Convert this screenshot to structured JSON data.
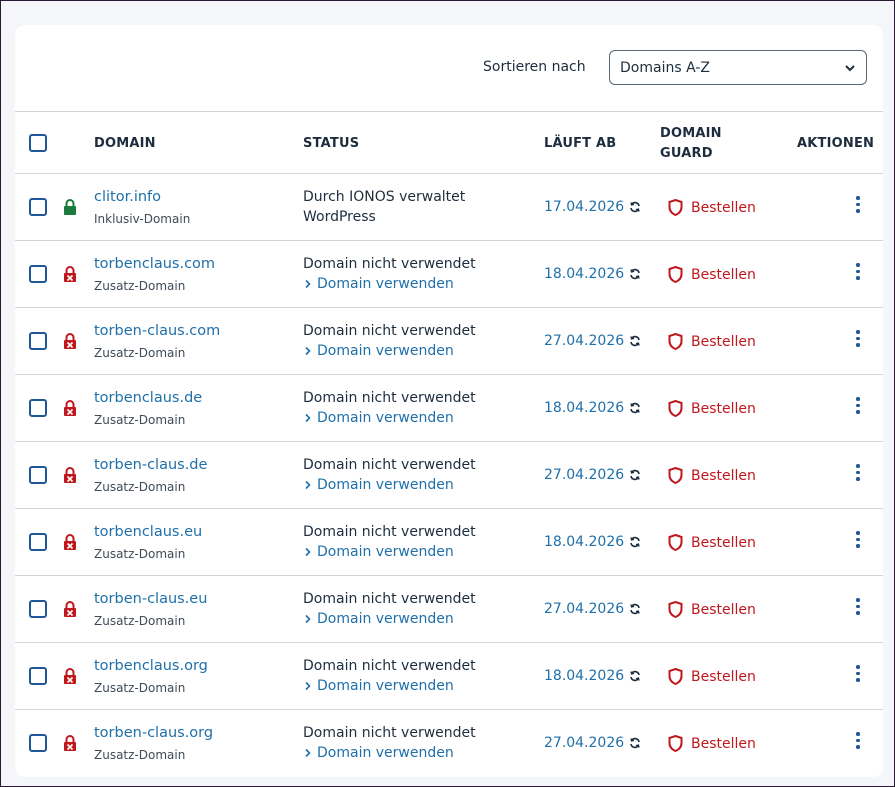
{
  "sort": {
    "label": "Sortieren nach",
    "selected": "Domains A-Z"
  },
  "columns": {
    "domain": "DOMAIN",
    "status": "STATUS",
    "expires": "LÄUFT AB",
    "guard_line1": "DOMAIN",
    "guard_line2": "GUARD",
    "actions": "AKTIONEN"
  },
  "colors": {
    "link": "#1f6fa9",
    "checkbox": "#1f5797",
    "lock_green": "#1a7a3c",
    "lock_red": "#c0171d",
    "guard_red": "#c0171d"
  },
  "rows": [
    {
      "domain": "clitor.info",
      "type": "Inklusiv-Domain",
      "status_line1": "Durch IONOS verwaltet",
      "status_line2": "WordPress",
      "status_link": false,
      "expires": "17.04.2026",
      "guard": "Bestellen",
      "lock": "green-lock-icon"
    },
    {
      "domain": "torbenclaus.com",
      "type": "Zusatz-Domain",
      "status_line1": "Domain nicht verwendet",
      "status_line2": "Domain verwenden",
      "status_link": true,
      "expires": "18.04.2026",
      "guard": "Bestellen",
      "lock": "red-lock-icon"
    },
    {
      "domain": "torben-claus.com",
      "type": "Zusatz-Domain",
      "status_line1": "Domain nicht verwendet",
      "status_line2": "Domain verwenden",
      "status_link": true,
      "expires": "27.04.2026",
      "guard": "Bestellen",
      "lock": "red-lock-icon"
    },
    {
      "domain": "torbenclaus.de",
      "type": "Zusatz-Domain",
      "status_line1": "Domain nicht verwendet",
      "status_line2": "Domain verwenden",
      "status_link": true,
      "expires": "18.04.2026",
      "guard": "Bestellen",
      "lock": "red-lock-icon"
    },
    {
      "domain": "torben-claus.de",
      "type": "Zusatz-Domain",
      "status_line1": "Domain nicht verwendet",
      "status_line2": "Domain verwenden",
      "status_link": true,
      "expires": "27.04.2026",
      "guard": "Bestellen",
      "lock": "red-lock-icon"
    },
    {
      "domain": "torbenclaus.eu",
      "type": "Zusatz-Domain",
      "status_line1": "Domain nicht verwendet",
      "status_line2": "Domain verwenden",
      "status_link": true,
      "expires": "18.04.2026",
      "guard": "Bestellen",
      "lock": "red-lock-icon"
    },
    {
      "domain": "torben-claus.eu",
      "type": "Zusatz-Domain",
      "status_line1": "Domain nicht verwendet",
      "status_line2": "Domain verwenden",
      "status_link": true,
      "expires": "27.04.2026",
      "guard": "Bestellen",
      "lock": "red-lock-icon"
    },
    {
      "domain": "torbenclaus.org",
      "type": "Zusatz-Domain",
      "status_line1": "Domain nicht verwendet",
      "status_line2": "Domain verwenden",
      "status_link": true,
      "expires": "18.04.2026",
      "guard": "Bestellen",
      "lock": "red-lock-icon"
    },
    {
      "domain": "torben-claus.org",
      "type": "Zusatz-Domain",
      "status_line1": "Domain nicht verwendet",
      "status_line2": "Domain verwenden",
      "status_link": true,
      "expires": "27.04.2026",
      "guard": "Bestellen",
      "lock": "red-lock-icon"
    }
  ]
}
